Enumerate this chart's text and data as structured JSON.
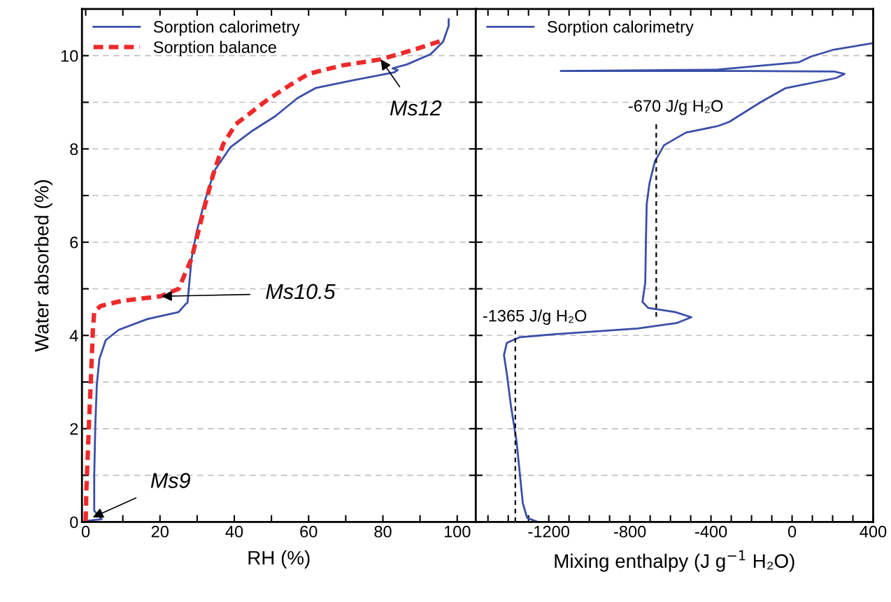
{
  "chart_data": [
    {
      "type": "line",
      "xlabel": "RH (%)",
      "ylabel": "Water absorbed (%)",
      "xlim": [
        -1,
        105
      ],
      "ylim": [
        0,
        11
      ],
      "xticks": [
        0,
        {
          "value": 10,
          "label": null
        },
        20,
        {
          "value": 30,
          "label": null
        },
        40,
        {
          "value": 50,
          "label": null
        },
        60,
        {
          "value": 70,
          "label": null
        },
        80,
        {
          "value": 90,
          "label": null
        },
        100
      ],
      "yticks": [
        0,
        {
          "value": 1,
          "label": null
        },
        2,
        {
          "value": 3,
          "label": null
        },
        4,
        {
          "value": 5,
          "label": null
        },
        6,
        {
          "value": 7,
          "label": null
        },
        8,
        {
          "value": 9,
          "label": null
        },
        10
      ],
      "grid": "y",
      "legend": "top left",
      "marker": "none",
      "series": [
        {
          "name": "Sorption calorimetry",
          "color": "#3a4fa8",
          "line_style": "solid",
          "x": [
            0,
            4.3,
            2.3,
            2.3,
            2.6,
            3.0,
            3.7,
            5.4,
            8.9,
            16.6,
            25,
            27,
            27.4,
            28.5,
            29.8,
            32,
            34.7,
            39,
            44.5,
            51,
            57,
            62,
            72.5,
            83,
            84,
            82.6,
            86.4,
            92.8,
            96.2,
            97.7,
            97.7
          ],
          "values": [
            0.02,
            0.06,
            0.24,
            1.0,
            2.1,
            2.95,
            3.5,
            3.9,
            4.12,
            4.35,
            4.5,
            4.68,
            4.7,
            5.65,
            6.2,
            6.87,
            7.54,
            8.04,
            8.37,
            8.7,
            9.09,
            9.31,
            9.48,
            9.64,
            9.69,
            9.73,
            9.81,
            10.03,
            10.3,
            10.64,
            10.78
          ]
        },
        {
          "name": "Sorption balance",
          "color": "#ee2a2a",
          "line_style": "dashed",
          "x": [
            0,
            0.2,
            0.9,
            1.5,
            1.9,
            2.3,
            4.0,
            9.6,
            20.2,
            25,
            28.5,
            32,
            34.2,
            37,
            40.4,
            48.7,
            55,
            60,
            69,
            79.4,
            89.2,
            96.6
          ],
          "values": [
            0.02,
            0.73,
            2.13,
            3.24,
            4.06,
            4.51,
            4.63,
            4.74,
            4.84,
            5.0,
            5.65,
            6.76,
            7.42,
            8.1,
            8.53,
            9.04,
            9.37,
            9.61,
            9.79,
            9.92,
            10.15,
            10.34
          ]
        }
      ],
      "annotations": [
        {
          "text": "Ms12",
          "x": 79.4,
          "y": 9.92
        },
        {
          "text": "Ms10.5",
          "x": 20.4,
          "y": 4.84
        },
        {
          "text": "Ms9",
          "x": 1.9,
          "y": 0.1
        }
      ]
    },
    {
      "type": "line",
      "xlabel": "Mixing enthalpy (J g$^{−1}$ H₂O)",
      "xlim": [
        -1560,
        400
      ],
      "ylim": [
        0,
        11
      ],
      "tick_labels": "x",
      "xticks": [
        {
          "value": -1500,
          "label": null
        },
        {
          "value": -1400,
          "label": null
        },
        {
          "value": -1300,
          "label": null
        },
        -1200,
        {
          "value": -1100,
          "label": null
        },
        {
          "value": -1000,
          "label": null
        },
        {
          "value": -900,
          "label": null
        },
        -800,
        {
          "value": -700,
          "label": null
        },
        {
          "value": -600,
          "label": null
        },
        {
          "value": -500,
          "label": null
        },
        -400,
        {
          "value": -300,
          "label": null
        },
        {
          "value": -200,
          "label": null
        },
        {
          "value": -100,
          "label": null
        },
        0,
        {
          "value": 100,
          "label": null
        },
        {
          "value": 200,
          "label": null
        },
        {
          "value": 300,
          "label": null
        },
        400
      ],
      "yticks": [
        0,
        {
          "value": 1,
          "label": null
        },
        2,
        {
          "value": 3,
          "label": null
        },
        4,
        {
          "value": 5,
          "label": null
        },
        6,
        {
          "value": 7,
          "label": null
        },
        8,
        {
          "value": 9,
          "label": null
        },
        10
      ],
      "grid": "y",
      "legend": "top left",
      "marker": "none",
      "series": [
        {
          "name": "Sorption calorimetry",
          "color": "#3a4fa8",
          "line_style": "solid",
          "x": [
            400,
            -762,
            -1255,
            -1307,
            -1328,
            -1359,
            -1386,
            -1407,
            -1421,
            -1407,
            -1345,
            -1162,
            -762,
            -566,
            -497,
            -576,
            -710,
            -738,
            -724,
            -721,
            -717,
            -703,
            -676,
            -631,
            -524,
            -366,
            -310,
            -152,
            -34,
            217,
            259,
            207,
            -231,
            -1141,
            -366,
            34,
            93,
            207,
            400
          ],
          "values": [
            0,
            0,
            0,
            0.09,
            0.4,
            1.73,
            2.47,
            3.18,
            3.58,
            3.84,
            3.96,
            4.03,
            4.15,
            4.27,
            4.39,
            4.5,
            4.59,
            4.72,
            5.14,
            6.01,
            6.82,
            7.27,
            7.74,
            8.08,
            8.35,
            8.49,
            8.58,
            9.01,
            9.3,
            9.52,
            9.61,
            9.66,
            9.67,
            9.67,
            9.7,
            9.86,
            9.98,
            10.13,
            10.27
          ]
        },
        {
          "color": "#000000",
          "line_style": "dashed",
          "x": [
            -670,
            -670
          ],
          "values": [
            4.4,
            8.6
          ]
        },
        {
          "color": "#000000",
          "line_style": "dashed",
          "x": [
            -1365,
            -1365
          ],
          "values": [
            0,
            4.1
          ]
        }
      ],
      "annotations": [
        "-670 J/g H₂O",
        "-1365 J/g H₂O"
      ]
    }
  ]
}
